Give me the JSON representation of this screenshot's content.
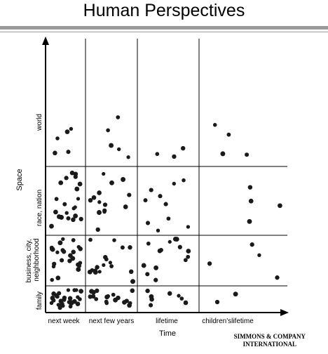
{
  "title": "Human Perspectives",
  "y_axis": {
    "label": "Space",
    "levels": [
      "family",
      "business, city, neighborhood",
      "race, nation",
      "world"
    ]
  },
  "x_axis": {
    "label": "Time",
    "levels": [
      "next week",
      "next few years",
      "lifetime",
      "children'slifetime"
    ]
  },
  "footer": {
    "line1": "SIMMONS & COMPANY",
    "line2": "INTERNATIONAL"
  },
  "colors": {
    "dots": "#1a1a1a",
    "rules": "#9a9a9a",
    "lines": "#000000"
  }
}
